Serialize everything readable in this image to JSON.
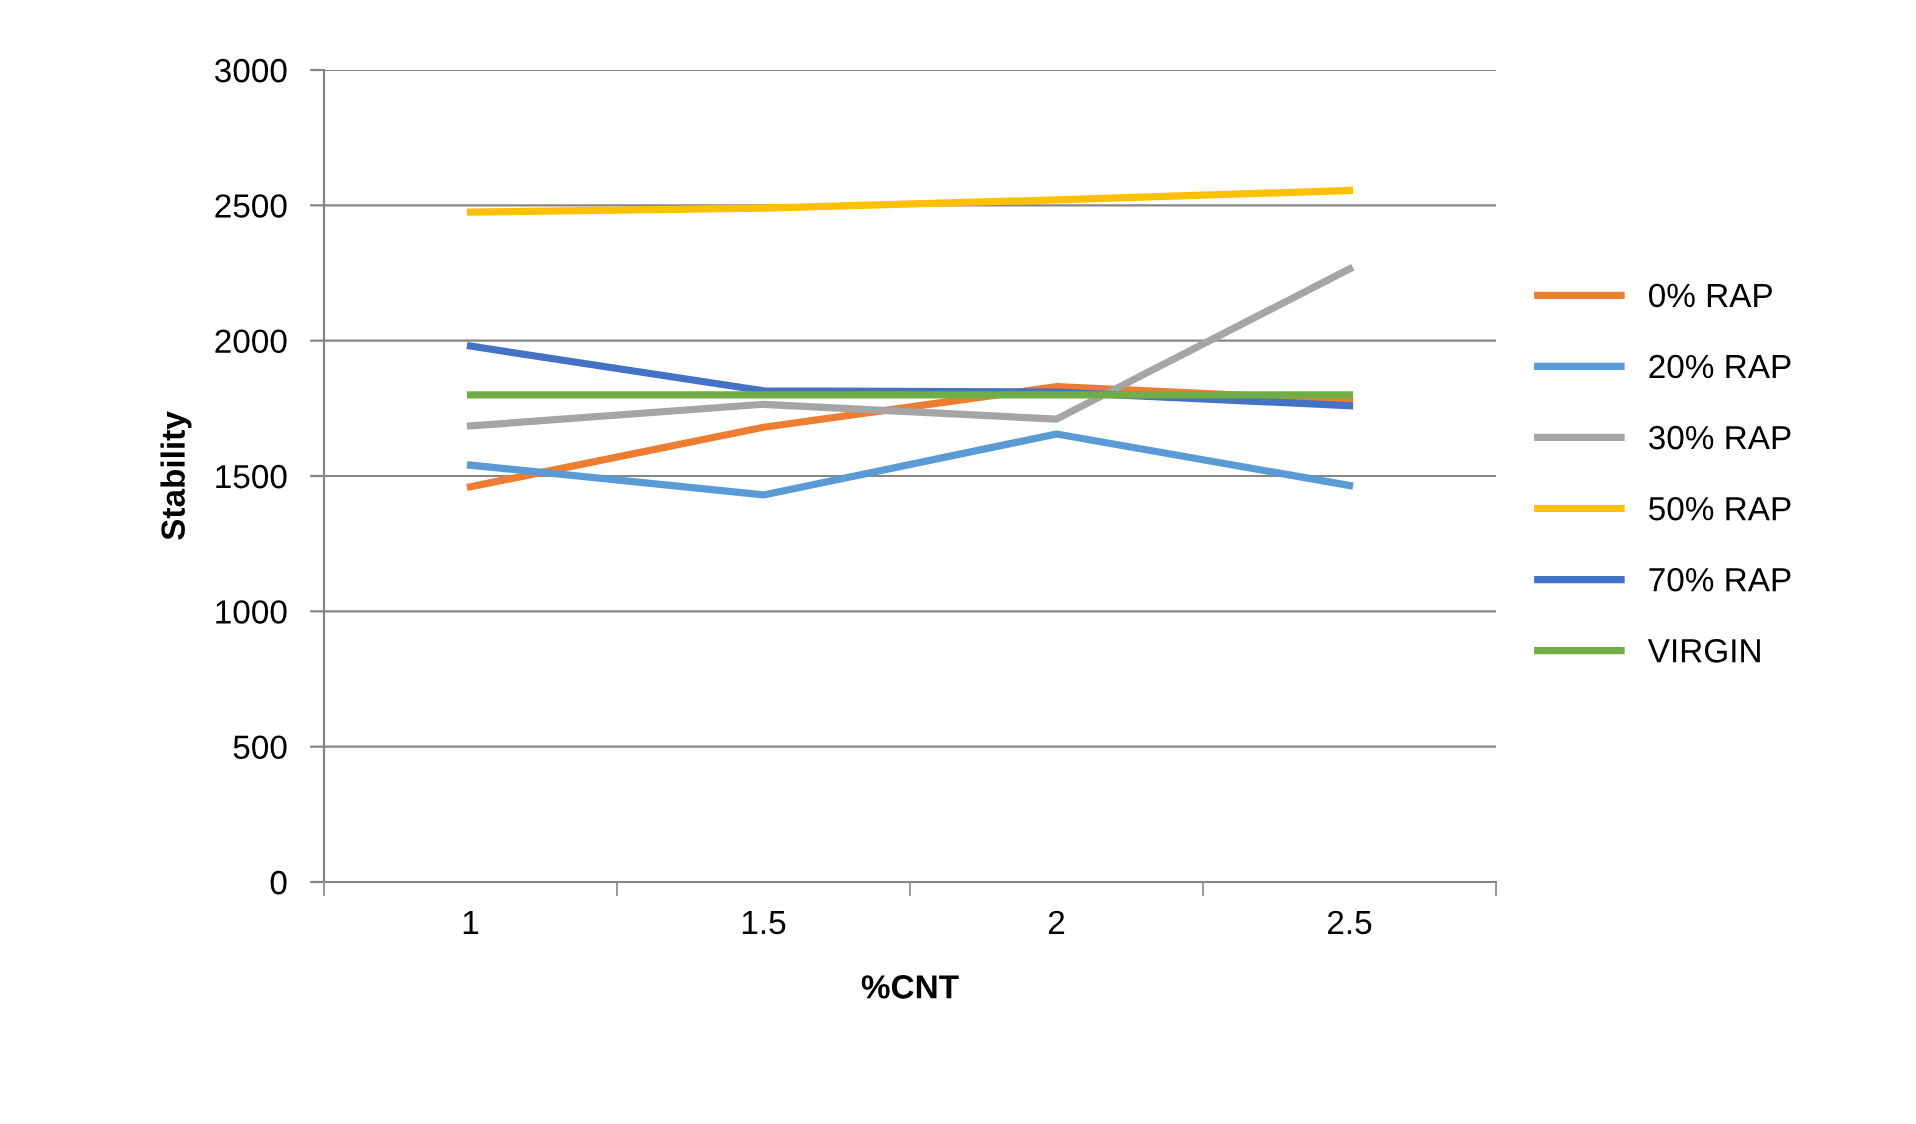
{
  "chart_data": {
    "type": "line",
    "xlabel": "%CNT",
    "ylabel": "Stability",
    "categories": [
      "1",
      "1.5",
      "2",
      "2.5"
    ],
    "series": [
      {
        "name": "0% RAP",
        "color": "#ed7d31",
        "values": [
          1460,
          1680,
          1830,
          1780
        ]
      },
      {
        "name": "20% RAP",
        "color": "#5b9bd5",
        "values": [
          1540,
          1430,
          1655,
          1465
        ]
      },
      {
        "name": "30% RAP",
        "color": "#a5a5a5",
        "values": [
          1685,
          1765,
          1710,
          2265
        ]
      },
      {
        "name": "50% RAP",
        "color": "#ffc000",
        "values": [
          2475,
          2490,
          2520,
          2555
        ]
      },
      {
        "name": "70% RAP",
        "color": "#4472c4",
        "values": [
          1980,
          1815,
          1810,
          1760
        ]
      },
      {
        "name": "VIRGIN",
        "color": "#70ad47",
        "values": [
          1800,
          1800,
          1800,
          1800
        ]
      }
    ],
    "ylim": [
      0,
      3000
    ],
    "yticks": [
      0,
      500,
      1000,
      1500,
      2000,
      2500,
      3000
    ],
    "grid": "y",
    "legend": "right",
    "marker": "none",
    "line_style": "solid"
  }
}
